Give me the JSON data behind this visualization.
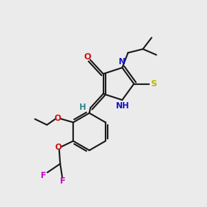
{
  "background_color": "#ebebeb",
  "colors": {
    "C": "#1a1a1a",
    "N": "#1414cc",
    "O": "#cc1414",
    "S": "#b8b800",
    "F": "#cc00cc",
    "H": "#2a8888",
    "bond": "#1a1a1a"
  },
  "figsize": [
    3.0,
    3.0
  ],
  "dpi": 100
}
